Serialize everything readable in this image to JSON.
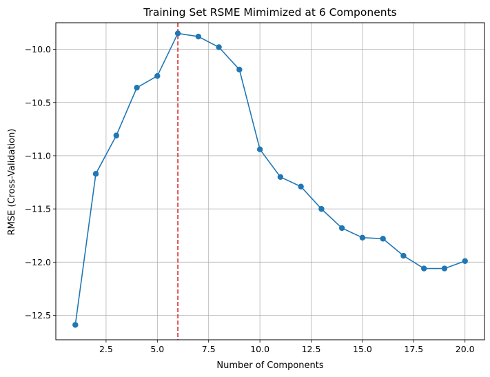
{
  "chart_data": {
    "type": "line",
    "title": "Training Set RSME Mimimized at 6 Components",
    "xlabel": "Number of Components",
    "ylabel": "RMSE (Cross-Validation)",
    "xlim": [
      0.05,
      20.95
    ],
    "ylim": [
      -12.73,
      -9.75
    ],
    "xticks": [
      2.5,
      5.0,
      7.5,
      10.0,
      12.5,
      15.0,
      17.5,
      20.0
    ],
    "xtick_labels": [
      "2.5",
      "5.0",
      "7.5",
      "10.0",
      "12.5",
      "15.0",
      "17.5",
      "20.0"
    ],
    "yticks": [
      -10.0,
      -10.5,
      -11.0,
      -11.5,
      -12.0,
      -12.5
    ],
    "ytick_labels": [
      "−10.0",
      "−10.5",
      "−11.0",
      "−11.5",
      "−12.0",
      "−12.5"
    ],
    "grid": true,
    "series": [
      {
        "x": [
          1,
          2,
          3,
          4,
          5,
          6,
          7,
          8,
          9,
          10,
          11,
          12,
          13,
          14,
          15,
          16,
          17,
          18,
          19,
          20
        ],
        "y": [
          -12.59,
          -11.17,
          -10.81,
          -10.36,
          -10.25,
          -9.85,
          -9.88,
          -9.98,
          -10.19,
          -10.94,
          -11.2,
          -11.29,
          -11.5,
          -11.68,
          -11.77,
          -11.78,
          -11.94,
          -12.06,
          -12.06,
          -11.99
        ],
        "color": "#1f77b4",
        "marker": "circle"
      }
    ],
    "vline": {
      "x": 6,
      "color": "#d62728",
      "style": "dashed"
    }
  }
}
